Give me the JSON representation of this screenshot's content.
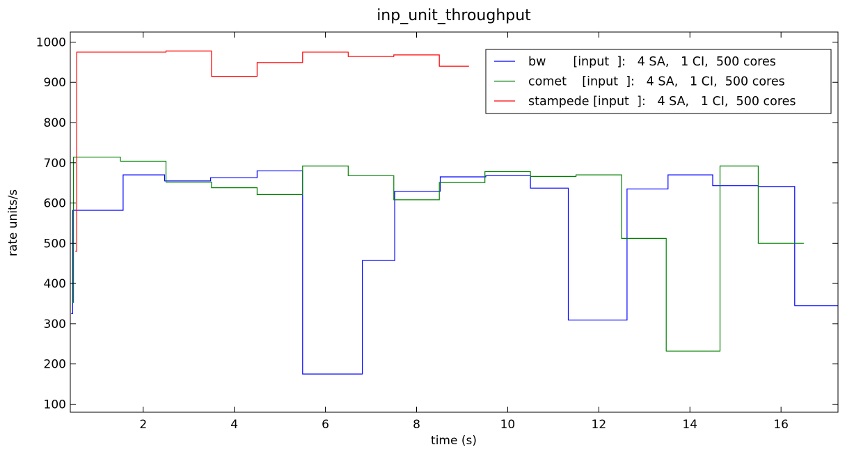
{
  "chart_data": {
    "type": "line",
    "step": "post",
    "title": "inp_unit_throughput",
    "xlabel": "time (s)",
    "ylabel": "rate units/s",
    "xlim": [
      0.4,
      17.25
    ],
    "ylim": [
      80,
      1025
    ],
    "xticks": [
      2,
      4,
      6,
      8,
      10,
      12,
      14,
      16
    ],
    "xtick_labels": [
      "2",
      "4",
      "6",
      "8",
      "10",
      "12",
      "14",
      "16"
    ],
    "yticks": [
      100,
      200,
      300,
      400,
      500,
      600,
      700,
      800,
      900,
      1000
    ],
    "ytick_labels": [
      "100",
      "200",
      "300",
      "400",
      "500",
      "600",
      "700",
      "800",
      "900",
      "1000"
    ],
    "grid": false,
    "legend_position": "top-right",
    "series": [
      {
        "name": "bw       [input  ]:   4 SA,   1 CI,  500 cores",
        "color": "#0000ff",
        "x": [
          0.42,
          0.45,
          1.56,
          2.47,
          3.48,
          4.5,
          5.5,
          6.81,
          7.52,
          8.52,
          9.52,
          10.5,
          11.33,
          12.62,
          13.52,
          14.5,
          15.5,
          16.3,
          17.25
        ],
        "y": [
          325,
          582,
          670,
          655,
          663,
          680,
          175,
          457,
          629,
          665,
          668,
          637,
          309,
          635,
          670,
          643,
          641,
          345,
          345
        ]
      },
      {
        "name": "comet    [input  ]:   4 SA,   1 CI,  500 cores",
        "color": "#008000",
        "x": [
          0.44,
          0.47,
          1.5,
          2.5,
          3.5,
          4.5,
          5.5,
          6.5,
          7.5,
          8.5,
          9.5,
          10.5,
          11.5,
          12.5,
          13.48,
          14.66,
          15.5,
          16.5
        ],
        "y": [
          353,
          714,
          704,
          652,
          638,
          621,
          692,
          668,
          608,
          651,
          678,
          666,
          670,
          512,
          232,
          692,
          500,
          500
        ]
      },
      {
        "name": "stampede [input  ]:   4 SA,   1 CI,  500 cores",
        "color": "#ff0000",
        "x": [
          0.51,
          0.54,
          2.5,
          3.5,
          4.5,
          5.5,
          6.5,
          7.5,
          8.5,
          9.15
        ],
        "y": [
          480,
          975,
          978,
          915,
          949,
          975,
          964,
          968,
          940,
          940
        ]
      }
    ]
  }
}
